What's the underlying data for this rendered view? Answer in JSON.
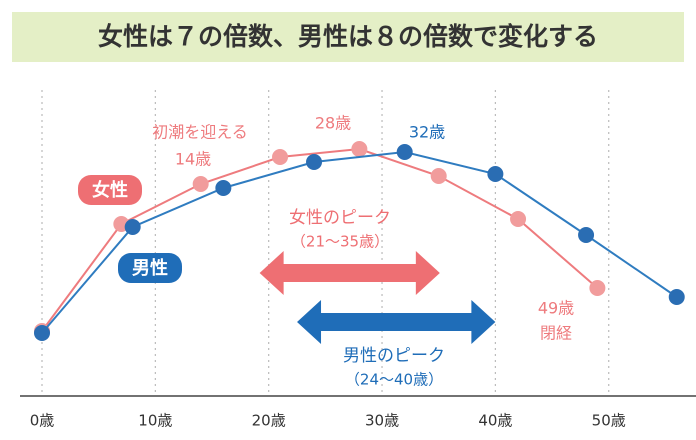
{
  "chart_data": {
    "type": "line",
    "title": "女性は７の倍数、男性は８の倍数で変化する",
    "series": [
      {
        "name": "女性",
        "color": "#ee7b7e",
        "marker_color": "#f19c9c",
        "x": [
          0,
          7,
          14,
          21,
          28,
          35,
          42,
          49
        ],
        "values": [
          64,
          171,
          211,
          238,
          246,
          219,
          176,
          107
        ]
      },
      {
        "name": "男性",
        "color": "#2f7cc0",
        "marker_color": "#2a6db3",
        "x": [
          0,
          8,
          16,
          24,
          32,
          40,
          48,
          56
        ],
        "values": [
          62,
          168,
          207,
          233,
          243,
          221,
          160,
          98
        ]
      }
    ],
    "xlim": [
      0,
      57.7
    ],
    "xticks": [
      {
        "value": 0,
        "label": "0歳"
      },
      {
        "value": 10,
        "label": "10歳"
      },
      {
        "value": 20,
        "label": "20歳"
      },
      {
        "value": 30,
        "label": "30歳"
      },
      {
        "value": 40,
        "label": "40歳"
      },
      {
        "value": 50,
        "label": "50歳"
      }
    ],
    "ylim": [
      0,
      260
    ],
    "grid": true,
    "annotations": [
      "初潮を迎える",
      "14歳",
      "28歳",
      "32歳",
      "49歳",
      "閉経"
    ],
    "peaks": [
      {
        "label": "女性のピーク",
        "range_label": "（21～35歳）",
        "range": [
          19.2,
          35.1
        ],
        "color": "#ee6f73"
      },
      {
        "label": "男性のピーク",
        "range_label": "（24～40歳）",
        "range": [
          22.5,
          40
        ],
        "color": "#1f6db8"
      }
    ]
  }
}
